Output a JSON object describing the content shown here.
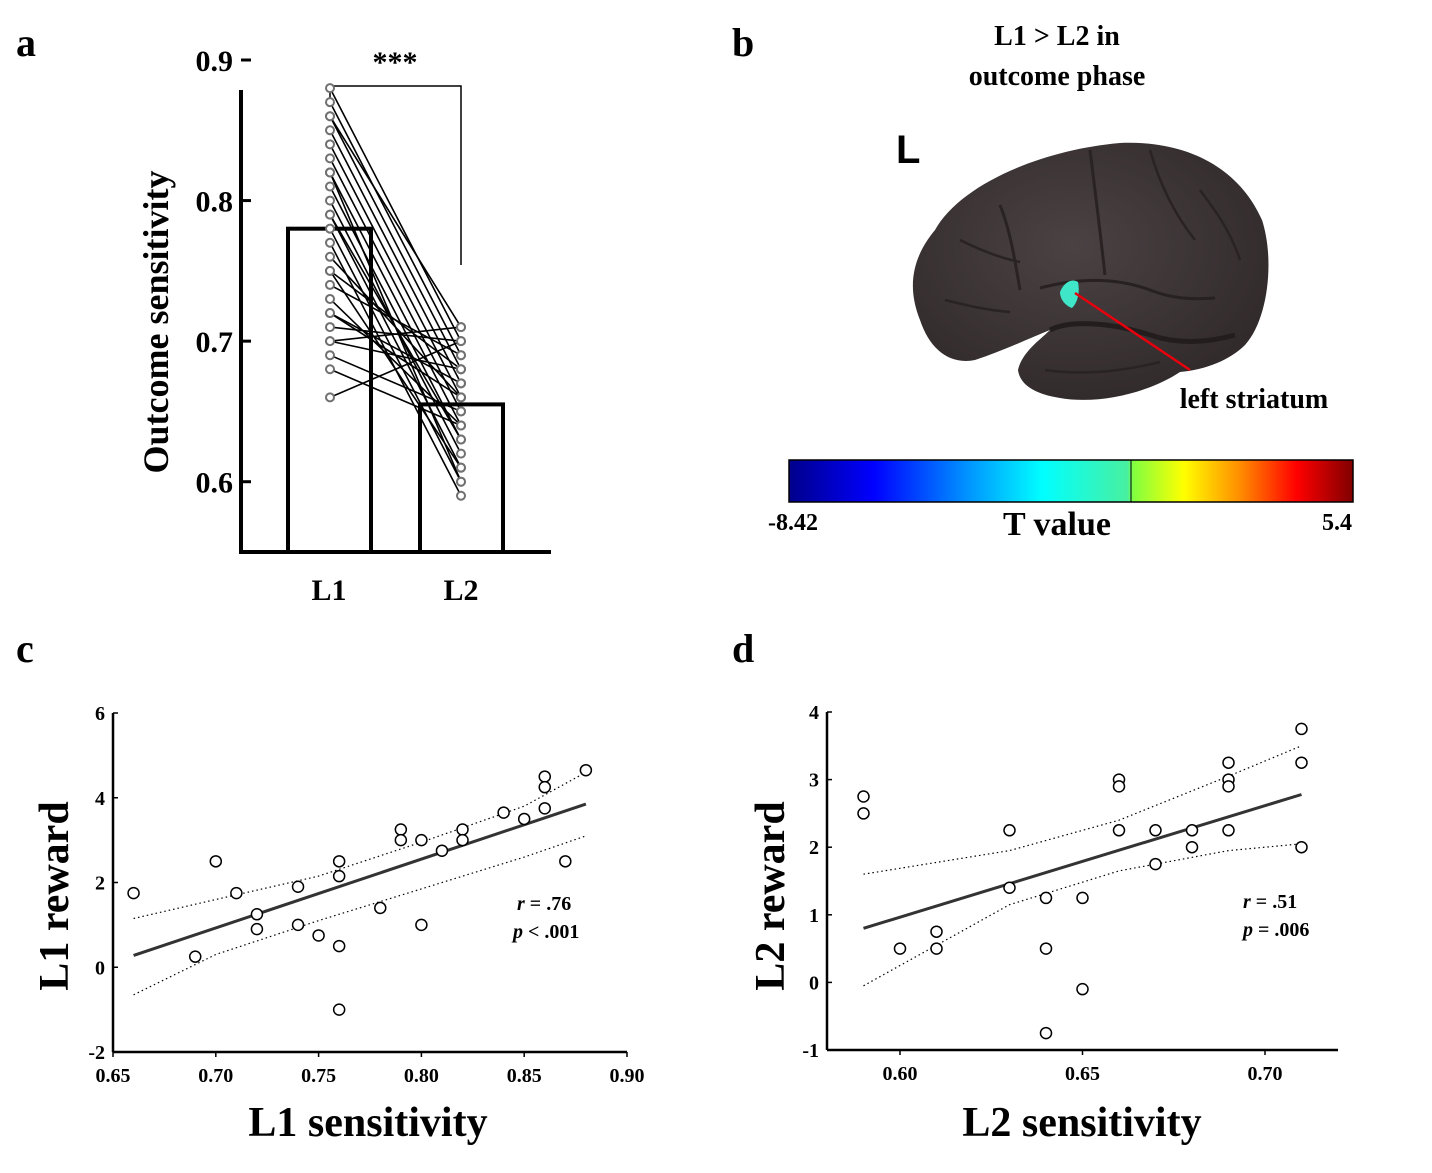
{
  "panels": {
    "a": "a",
    "b": "b",
    "c": "c",
    "d": "d"
  },
  "colors": {
    "brain": "#3e3738",
    "brain_dark": "#2a2425",
    "axis": "#000000",
    "marker_edge": "#707070",
    "annotation_line": "#e8000d",
    "activation": "#3fe6c8"
  },
  "chart_data": [
    {
      "panel": "a",
      "type": "bar",
      "categories": [
        "L1",
        "L2"
      ],
      "values": [
        0.78,
        0.655
      ],
      "ylabel": "Outcome sensitivity",
      "xlabel": "",
      "ylim": [
        0.55,
        0.9
      ],
      "yticks": [
        0.6,
        0.7,
        0.8,
        0.9
      ],
      "ytick_labels": [
        "0.6",
        "0.7",
        "0.8",
        "0.9"
      ],
      "significance": "***",
      "paired_points": [
        [
          0.88,
          0.7
        ],
        [
          0.87,
          0.69
        ],
        [
          0.86,
          0.68
        ],
        [
          0.85,
          0.67
        ],
        [
          0.84,
          0.66
        ],
        [
          0.83,
          0.65
        ],
        [
          0.82,
          0.64
        ],
        [
          0.81,
          0.63
        ],
        [
          0.8,
          0.62
        ],
        [
          0.79,
          0.61
        ],
        [
          0.78,
          0.6
        ],
        [
          0.77,
          0.59
        ],
        [
          0.76,
          0.66
        ],
        [
          0.75,
          0.68
        ],
        [
          0.74,
          0.69
        ],
        [
          0.73,
          0.64
        ],
        [
          0.72,
          0.67
        ],
        [
          0.71,
          0.7
        ],
        [
          0.7,
          0.71
        ],
        [
          0.69,
          0.65
        ],
        [
          0.66,
          0.7
        ],
        [
          0.86,
          0.71
        ],
        [
          0.82,
          0.6
        ],
        [
          0.79,
          0.63
        ],
        [
          0.75,
          0.61
        ],
        [
          0.72,
          0.66
        ],
        [
          0.7,
          0.68
        ],
        [
          0.68,
          0.64
        ]
      ]
    },
    {
      "panel": "b",
      "type": "other",
      "title_line1": "L1 > L2 in",
      "title_line2": "outcome phase",
      "hemisphere_label": "L",
      "annotation": "left striatum",
      "colorbar_label": "T value",
      "colorbar_min": "-8.42",
      "colorbar_max": "5.4"
    },
    {
      "panel": "c",
      "type": "scatter",
      "xlabel": "L1 sensitivity",
      "ylabel": "L1 reward",
      "xlim": [
        0.65,
        0.9
      ],
      "ylim": [
        -2,
        6
      ],
      "xticks": [
        0.65,
        0.7,
        0.75,
        0.8,
        0.85,
        0.9
      ],
      "xtick_labels": [
        "0.65",
        "0.70",
        "0.75",
        "0.80",
        "0.85",
        "0.90"
      ],
      "yticks": [
        -2,
        0,
        2,
        4,
        6
      ],
      "ytick_labels": [
        "-2",
        "0",
        "2",
        "4",
        "6"
      ],
      "stat_r": ".76",
      "stat_p": "< .001",
      "stat_r_prefix": "r",
      "stat_p_prefix": "p",
      "points": [
        [
          0.66,
          1.75
        ],
        [
          0.69,
          0.25
        ],
        [
          0.7,
          2.5
        ],
        [
          0.71,
          1.75
        ],
        [
          0.72,
          1.25
        ],
        [
          0.72,
          0.9
        ],
        [
          0.74,
          1.9
        ],
        [
          0.74,
          1.0
        ],
        [
          0.75,
          0.75
        ],
        [
          0.76,
          2.5
        ],
        [
          0.76,
          2.15
        ],
        [
          0.76,
          0.5
        ],
        [
          0.76,
          -1.0
        ],
        [
          0.78,
          1.4
        ],
        [
          0.79,
          3.25
        ],
        [
          0.79,
          3.0
        ],
        [
          0.8,
          3.0
        ],
        [
          0.8,
          1.0
        ],
        [
          0.81,
          2.75
        ],
        [
          0.82,
          3.25
        ],
        [
          0.82,
          3.0
        ],
        [
          0.84,
          3.65
        ],
        [
          0.85,
          3.5
        ],
        [
          0.86,
          4.5
        ],
        [
          0.86,
          4.25
        ],
        [
          0.86,
          3.75
        ],
        [
          0.87,
          2.5
        ],
        [
          0.88,
          4.65
        ]
      ],
      "fit": [
        [
          0.66,
          0.28
        ],
        [
          0.88,
          3.85
        ]
      ],
      "ci_upper": [
        [
          0.66,
          1.15
        ],
        [
          0.7,
          1.6
        ],
        [
          0.75,
          2.15
        ],
        [
          0.8,
          2.95
        ],
        [
          0.85,
          3.8
        ],
        [
          0.88,
          4.6
        ]
      ],
      "ci_lower": [
        [
          0.66,
          -0.65
        ],
        [
          0.7,
          0.3
        ],
        [
          0.75,
          1.1
        ],
        [
          0.8,
          1.85
        ],
        [
          0.85,
          2.6
        ],
        [
          0.88,
          3.1
        ]
      ]
    },
    {
      "panel": "d",
      "type": "scatter",
      "xlabel": "L2 sensitivity",
      "ylabel": "L2 reward",
      "xlim": [
        0.58,
        0.72
      ],
      "ylim": [
        -1,
        4
      ],
      "xticks": [
        0.6,
        0.65,
        0.7
      ],
      "xtick_labels": [
        "0.60",
        "0.65",
        "0.70"
      ],
      "yticks": [
        -1,
        0,
        1,
        2,
        3,
        4
      ],
      "ytick_labels": [
        "-1",
        "0",
        "1",
        "2",
        "3",
        "4"
      ],
      "stat_r": ".51",
      "stat_p": "= .006",
      "stat_r_prefix": "r",
      "stat_p_prefix": "p",
      "points": [
        [
          0.59,
          2.75
        ],
        [
          0.59,
          2.5
        ],
        [
          0.6,
          0.5
        ],
        [
          0.61,
          0.75
        ],
        [
          0.61,
          0.5
        ],
        [
          0.63,
          2.25
        ],
        [
          0.63,
          1.4
        ],
        [
          0.64,
          1.25
        ],
        [
          0.64,
          0.5
        ],
        [
          0.64,
          -0.75
        ],
        [
          0.65,
          1.25
        ],
        [
          0.65,
          -0.1
        ],
        [
          0.66,
          3.0
        ],
        [
          0.66,
          2.9
        ],
        [
          0.66,
          2.25
        ],
        [
          0.67,
          2.25
        ],
        [
          0.67,
          1.75
        ],
        [
          0.68,
          2.25
        ],
        [
          0.68,
          2.0
        ],
        [
          0.69,
          3.25
        ],
        [
          0.69,
          3.0
        ],
        [
          0.69,
          2.9
        ],
        [
          0.69,
          2.25
        ],
        [
          0.71,
          3.75
        ],
        [
          0.71,
          3.25
        ],
        [
          0.71,
          2.0
        ]
      ],
      "fit": [
        [
          0.59,
          0.8
        ],
        [
          0.71,
          2.78
        ]
      ],
      "ci_upper": [
        [
          0.59,
          1.6
        ],
        [
          0.63,
          1.95
        ],
        [
          0.66,
          2.4
        ],
        [
          0.69,
          3.05
        ],
        [
          0.71,
          3.5
        ]
      ],
      "ci_lower": [
        [
          0.59,
          -0.05
        ],
        [
          0.63,
          1.15
        ],
        [
          0.66,
          1.65
        ],
        [
          0.69,
          1.95
        ],
        [
          0.71,
          2.05
        ]
      ]
    }
  ]
}
